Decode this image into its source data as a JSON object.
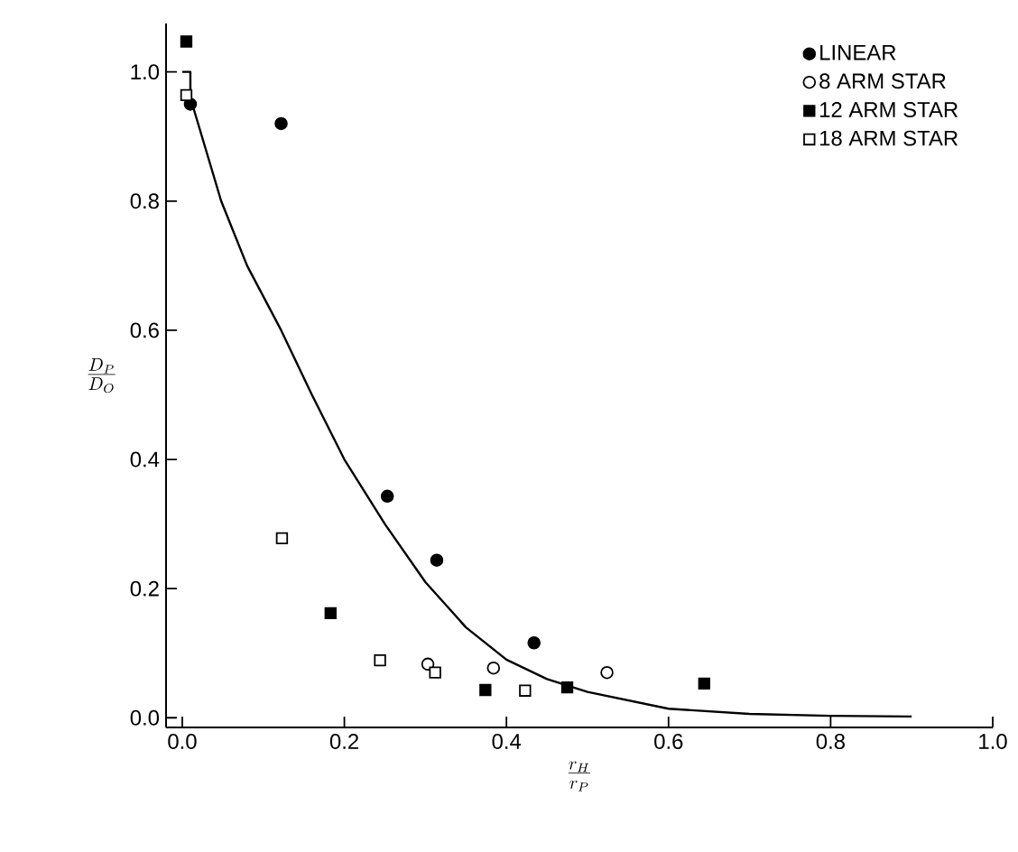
{
  "chart_data": {
    "type": "scatter",
    "xlabel": "\\frac{r_H}{r_P}",
    "ylabel": "\\frac{D_P}{D_O}",
    "xlim": [
      -0.02,
      1.0
    ],
    "ylim": [
      -0.015,
      1.075
    ],
    "xticks": [
      {
        "value": 0,
        "label": "0.0"
      },
      {
        "value": 0.2,
        "label": "0.2"
      },
      {
        "value": 0.4,
        "label": "0.4"
      },
      {
        "value": 0.6,
        "label": "0.6"
      },
      {
        "value": 0.8,
        "label": "0.8"
      },
      {
        "value": 1.0,
        "label": "1.0"
      }
    ],
    "yticks": [
      {
        "value": 0,
        "label": "0.0"
      },
      {
        "value": 0.2,
        "label": "0.2"
      },
      {
        "value": 0.4,
        "label": "0.4"
      },
      {
        "value": 0.6,
        "label": "0.6"
      },
      {
        "value": 0.8,
        "label": "0.8"
      },
      {
        "value": 1.0,
        "label": "1.0"
      }
    ],
    "legend": "top right",
    "grid": false,
    "series": [
      {
        "name": "LINEAR",
        "color": "#000000",
        "marker": "circle",
        "x": [
          0.01,
          0.122,
          0.253,
          0.314,
          0.434
        ],
        "values": [
          0.95,
          0.92,
          0.343,
          0.244,
          0.116
        ]
      },
      {
        "name": "8 ARM STAR",
        "color": "#ffffff",
        "marker": "circle",
        "x": [
          0.303,
          0.384,
          0.524
        ],
        "values": [
          0.083,
          0.077,
          0.07
        ]
      },
      {
        "name": "12 ARM STAR",
        "color": "#000000",
        "marker": "square",
        "x": [
          0.005,
          0.183,
          0.374,
          0.475,
          0.644
        ],
        "values": [
          1.047,
          0.162,
          0.043,
          0.047,
          0.053
        ]
      },
      {
        "name": "18 ARM STAR",
        "color": "#ffffff",
        "marker": "square",
        "x": [
          0.005,
          0.123,
          0.244,
          0.312,
          0.423
        ],
        "values": [
          0.964,
          0.278,
          0.089,
          0.07,
          0.042
        ]
      },
      {
        "type": "line",
        "color": "#000000",
        "marker": "none",
        "x": [
          0,
          0.01,
          0.01,
          0.048,
          0.08,
          0.122,
          0.16,
          0.2,
          0.25,
          0.3,
          0.35,
          0.4,
          0.45,
          0.5,
          0.6,
          0.7,
          0.8,
          0.9
        ],
        "values": [
          1.0,
          1.0,
          0.96,
          0.8,
          0.7,
          0.6,
          0.5,
          0.4,
          0.3,
          0.21,
          0.14,
          0.09,
          0.06,
          0.04,
          0.014,
          0.006,
          0.003,
          0.002
        ]
      }
    ]
  }
}
